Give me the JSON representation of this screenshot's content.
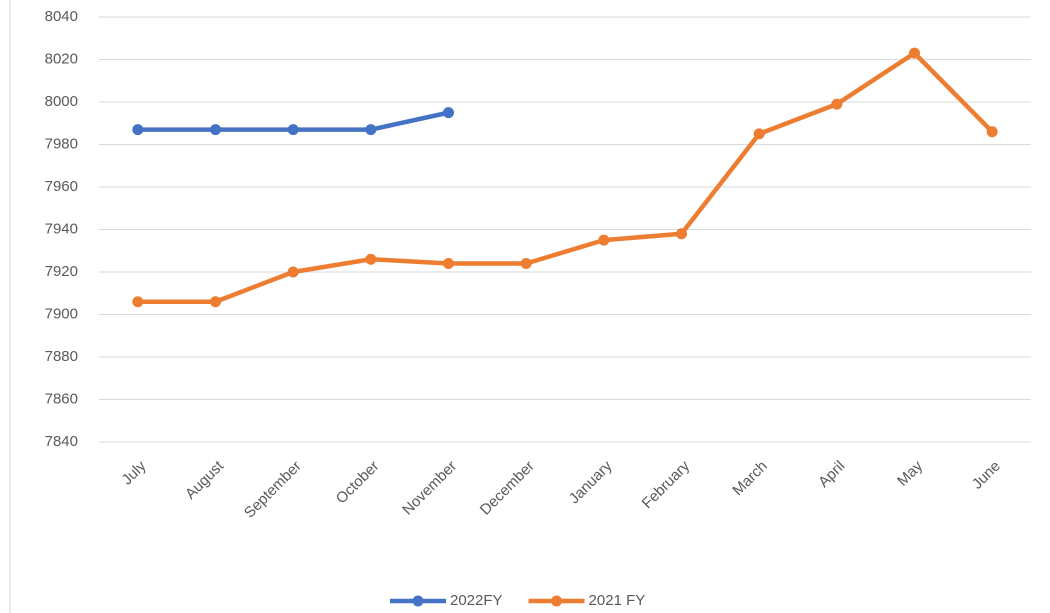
{
  "chart_data": {
    "type": "line",
    "categories": [
      "July",
      "August",
      "September",
      "October",
      "November",
      "December",
      "January",
      "February",
      "March",
      "April",
      "May",
      "June"
    ],
    "series": [
      {
        "name": "2022FY",
        "color": "#4472c4",
        "values": [
          7987,
          7987,
          7987,
          7987,
          7995,
          null,
          null,
          null,
          null,
          null,
          null,
          null
        ]
      },
      {
        "name": "2021 FY",
        "color": "#ed7d31",
        "values": [
          7906,
          7906,
          7920,
          7926,
          7924,
          7924,
          7935,
          7938,
          7985,
          7999,
          8023,
          7986
        ]
      }
    ],
    "ylim": [
      7840,
      8040
    ],
    "yticks": [
      7840,
      7860,
      7880,
      7900,
      7920,
      7940,
      7960,
      7980,
      8000,
      8020,
      8040
    ],
    "grid": true,
    "legend": "bottom"
  }
}
